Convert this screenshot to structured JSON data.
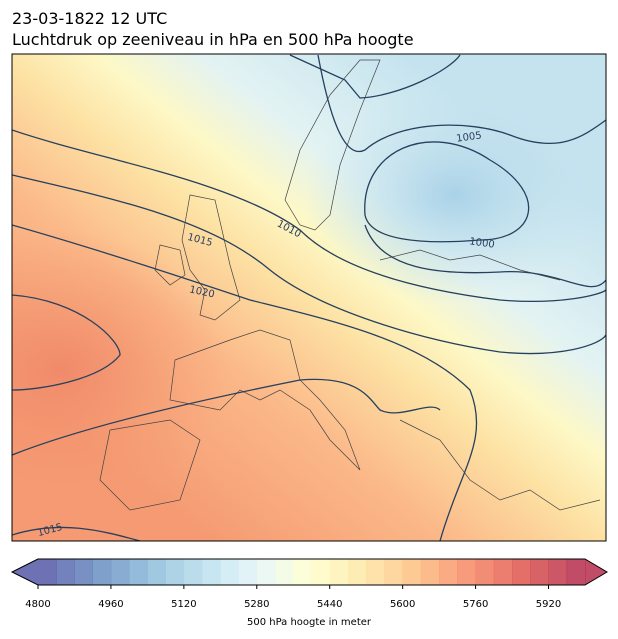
{
  "header": {
    "title": "23-03-1822 12 UTC",
    "subtitle": "Luchtdruk op zeeniveau in hPa en 500 hPa hoogte"
  },
  "map": {
    "contour_labels": [
      1005,
      1000,
      1010,
      1015,
      1020,
      1015
    ]
  },
  "colorbar": {
    "lim": [
      4800,
      6000
    ],
    "ticks": [
      4800,
      4960,
      5120,
      5280,
      5440,
      5600,
      5760,
      5920
    ],
    "label": "500 hPa hoogte in meter"
  }
}
